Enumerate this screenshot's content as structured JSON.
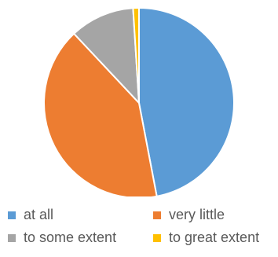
{
  "chart_data": {
    "type": "pie",
    "title": "",
    "slices": [
      {
        "label": "at all",
        "value": 47,
        "color": "#5B9BD5"
      },
      {
        "label": "very little",
        "value": 41,
        "color": "#ED7D31"
      },
      {
        "label": "to some extent",
        "value": 11,
        "color": "#A5A5A5"
      },
      {
        "label": "to great extent",
        "value": 1,
        "color": "#FFC000"
      }
    ],
    "legend_position": "bottom"
  }
}
